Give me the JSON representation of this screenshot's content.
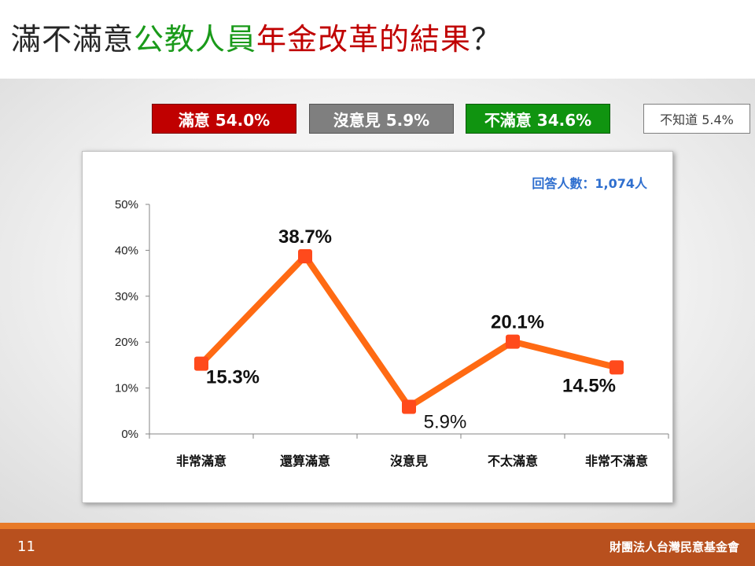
{
  "title": {
    "part1": "滿不滿意",
    "part2": "公教人員",
    "part3": "年金改革的結果",
    "part4": "？"
  },
  "summary": {
    "satisfied": "滿意 54.0%",
    "no_opinion": "沒意見 5.9%",
    "unsatisfied": "不滿意 34.6%",
    "unknown": "不知道 5.4%"
  },
  "respondents": "回答人數：1,074人",
  "chart_data": {
    "type": "line",
    "categories": [
      "非常滿意",
      "還算滿意",
      "沒意見",
      "不太滿意",
      "非常不滿意"
    ],
    "series": [
      {
        "values": [
          15.3,
          38.7,
          5.9,
          20.1,
          14.5
        ]
      }
    ],
    "data_labels": [
      "15.3%",
      "38.7%",
      "5.9%",
      "20.1%",
      "14.5%"
    ],
    "y_ticks": [
      "0%",
      "10%",
      "20%",
      "30%",
      "40%",
      "50%"
    ],
    "ylim": [
      0,
      50
    ],
    "grid": false,
    "colors": {
      "line": "#ff6a13",
      "marker": "#ff4a1c",
      "axis": "#868686"
    }
  },
  "footer": {
    "page": "11",
    "org": "財團法人台灣民意基金會"
  }
}
